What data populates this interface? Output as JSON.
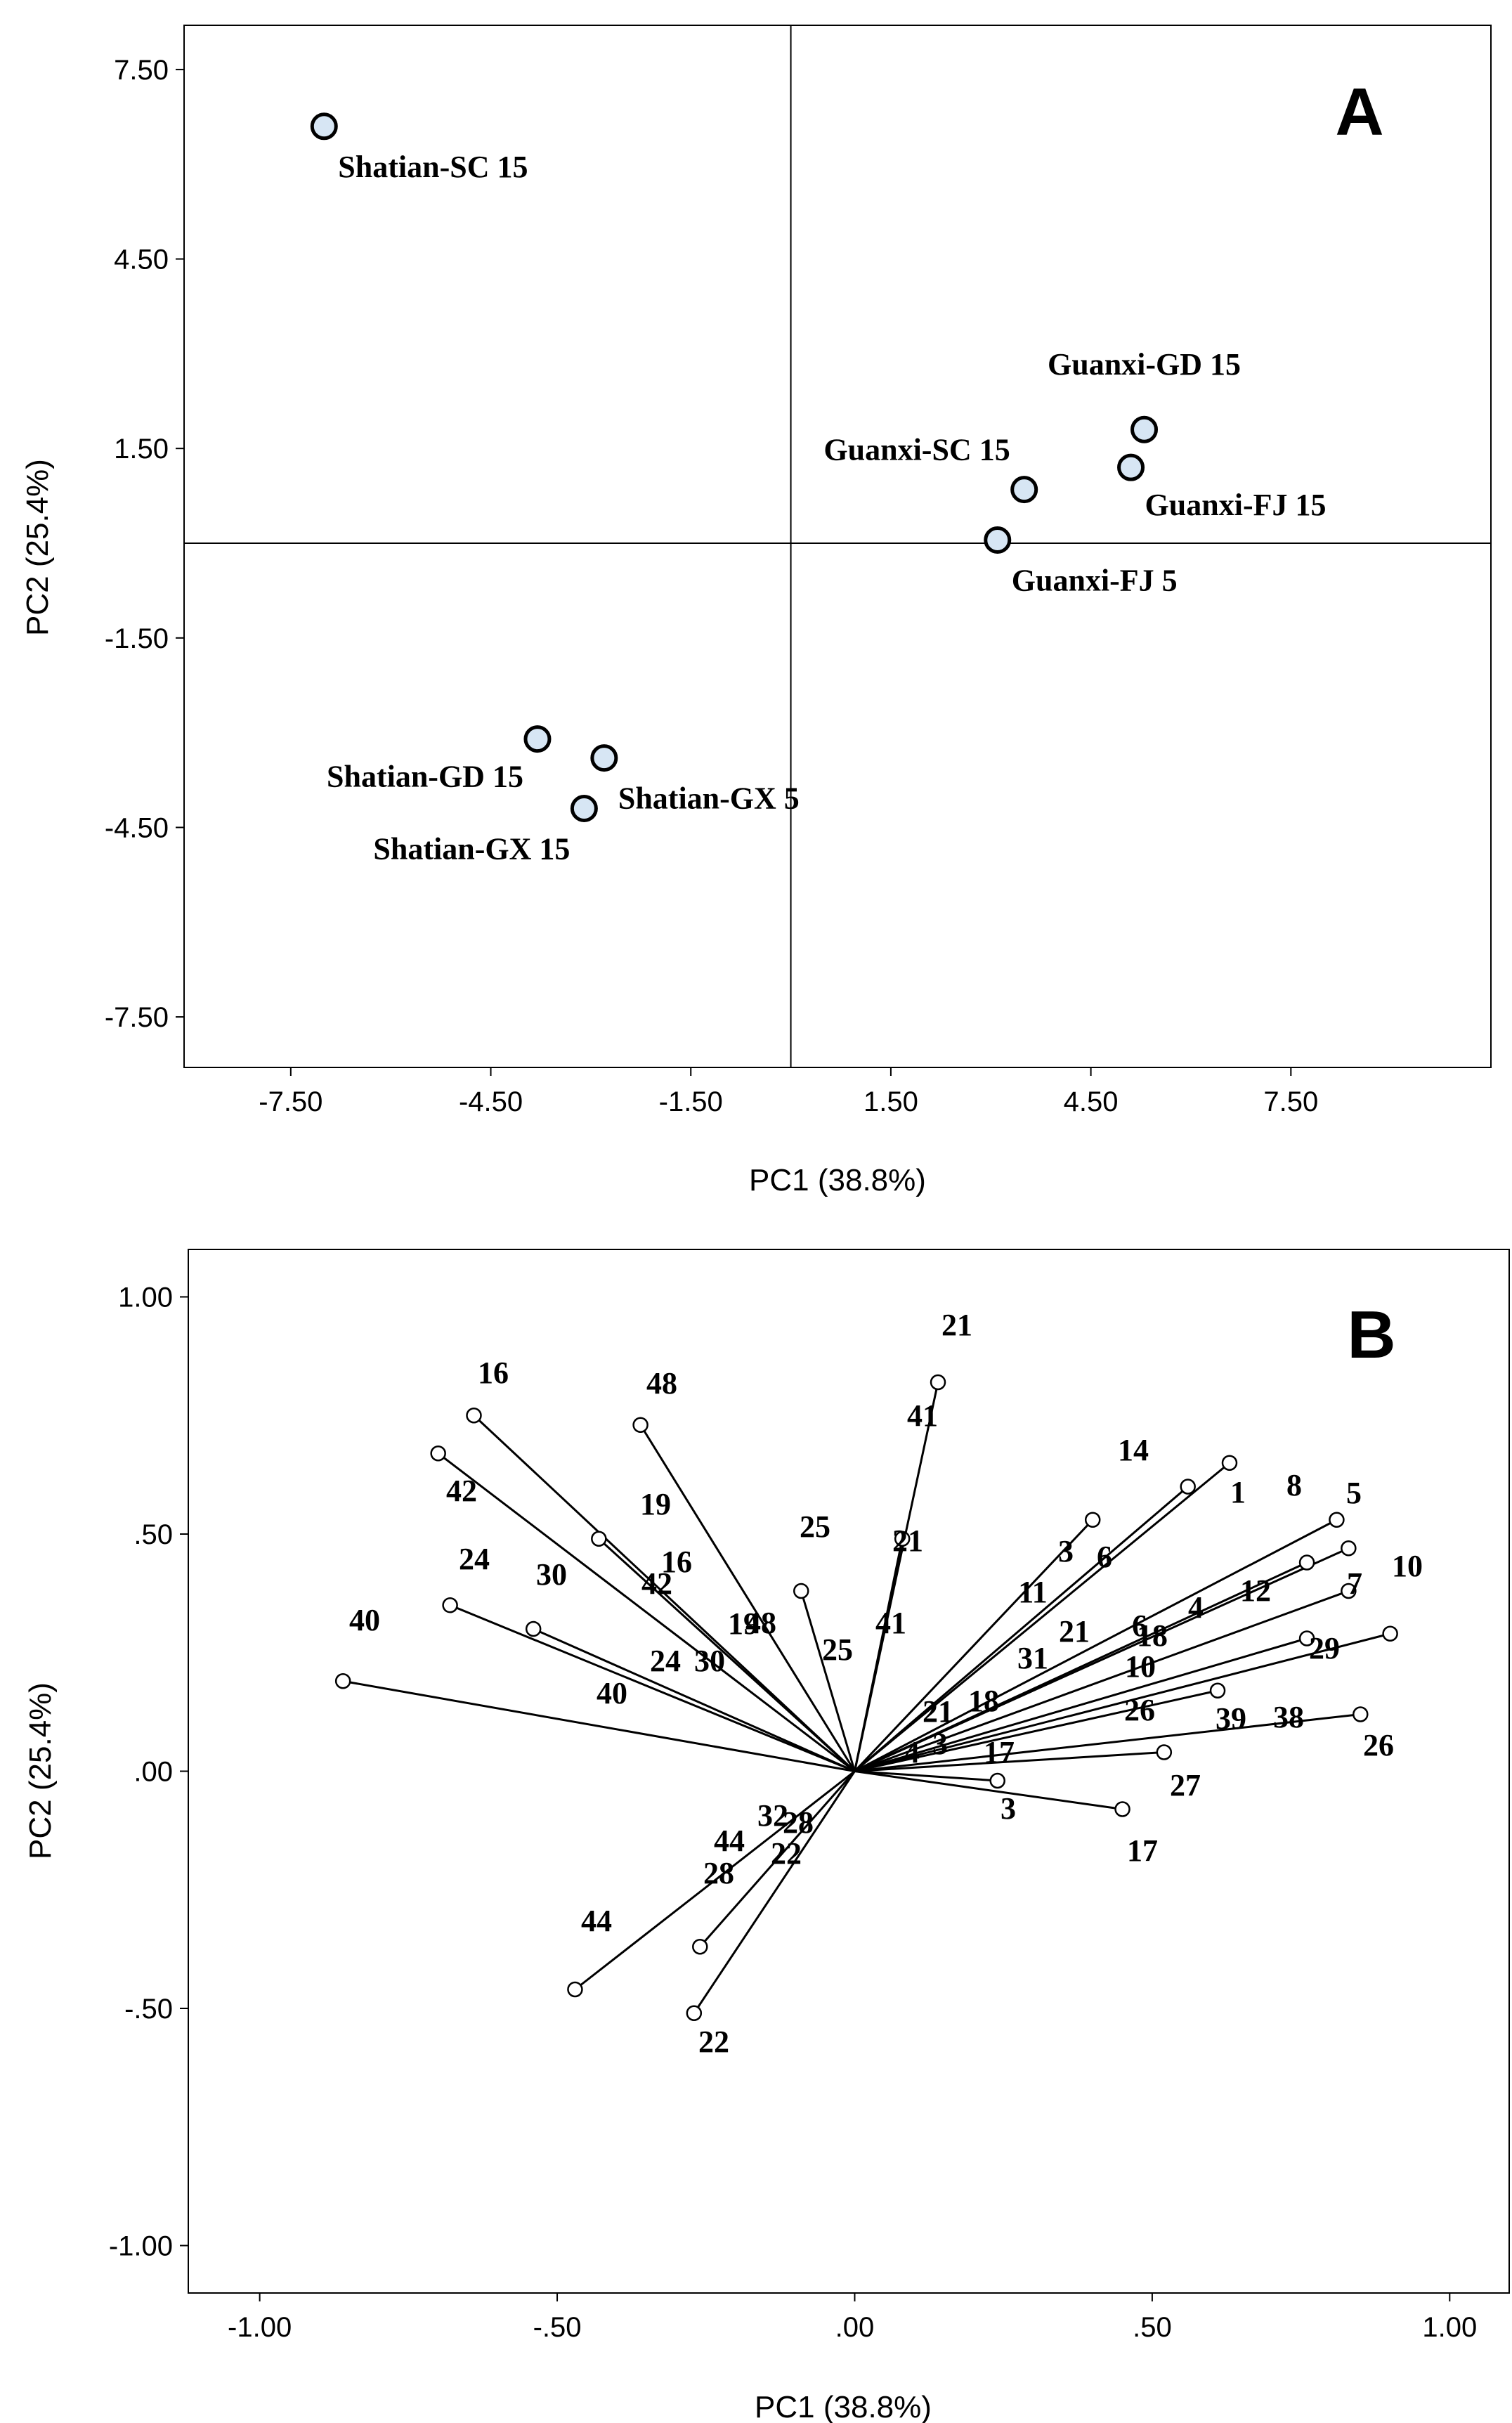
{
  "chart_data": [
    {
      "type": "scatter",
      "panel_label": "A",
      "xlabel": "PC1 (38.8%)",
      "ylabel": "PC2 (25.4%)",
      "xlim": [
        -9.1,
        10.5
      ],
      "ylim": [
        -8.3,
        8.2
      ],
      "xticks": [
        "-7.50",
        "-4.50",
        "-1.50",
        "1.50",
        "4.50",
        "7.50"
      ],
      "yticks": [
        "7.50",
        "4.50",
        "1.50",
        "-1.50",
        "-4.50",
        "-7.50"
      ],
      "reference_lines": {
        "x": 0,
        "y": 0
      },
      "points": [
        {
          "label": "Shatian-SC 15",
          "x": -7.0,
          "y": 6.6
        },
        {
          "label": "Guanxi-GD 15",
          "x": 5.3,
          "y": 1.8
        },
        {
          "label": "Guanxi-SC 15",
          "x": 3.5,
          "y": 0.85
        },
        {
          "label": "Guanxi-FJ 15",
          "x": 5.1,
          "y": 1.2
        },
        {
          "label": "Guanxi-FJ 5",
          "x": 3.1,
          "y": 0.05
        },
        {
          "label": "Shatian-GD 15",
          "x": -3.8,
          "y": -3.1
        },
        {
          "label": "Shatian-GX 5",
          "x": -2.8,
          "y": -3.4
        },
        {
          "label": "Shatian-GX 15",
          "x": -3.1,
          "y": -4.2
        }
      ]
    },
    {
      "type": "scatter",
      "panel_label": "B",
      "xlabel": "PC1 (38.8%)",
      "ylabel": "PC2 (25.4%)",
      "xlim": [
        -1.12,
        1.1
      ],
      "ylim": [
        -1.1,
        1.1
      ],
      "xticks": [
        "-1.00",
        "-.50",
        ".00",
        ".50",
        "1.00"
      ],
      "yticks": [
        "1.00",
        ".50",
        ".00",
        "-.50",
        "-1.00"
      ],
      "vectors": [
        {
          "label": "16",
          "x": -0.64,
          "y": 0.75
        },
        {
          "label": "48",
          "x": -0.36,
          "y": 0.73
        },
        {
          "label": "42",
          "x": -0.7,
          "y": 0.67
        },
        {
          "label": "19",
          "x": -0.43,
          "y": 0.49
        },
        {
          "label": "25",
          "x": -0.09,
          "y": 0.38
        },
        {
          "label": "30",
          "x": -0.54,
          "y": 0.3
        },
        {
          "label": "24",
          "x": -0.68,
          "y": 0.35
        },
        {
          "label": "40",
          "x": -0.86,
          "y": 0.19
        },
        {
          "label": "21",
          "x": 0.14,
          "y": 0.82
        },
        {
          "label": "41",
          "x": 0.08,
          "y": 0.49
        },
        {
          "label": "14",
          "x": 0.56,
          "y": 0.6
        },
        {
          "label": "1",
          "x": 0.63,
          "y": 0.65
        },
        {
          "label": "8",
          "x": 0.81,
          "y": 0.53
        },
        {
          "label": "5",
          "x": 0.83,
          "y": 0.47
        },
        {
          "label": "10",
          "x": 0.9,
          "y": 0.29
        },
        {
          "label": "12",
          "x": 0.76,
          "y": 0.44
        },
        {
          "label": "7",
          "x": 0.83,
          "y": 0.38
        },
        {
          "label": "6",
          "x": 0.4,
          "y": 0.53
        },
        {
          "label": "29",
          "x": 0.76,
          "y": 0.28
        },
        {
          "label": "38",
          "x": 0.85,
          "y": 0.12
        },
        {
          "label": "26",
          "x": 0.61,
          "y": 0.17
        },
        {
          "label": "27",
          "x": 0.52,
          "y": 0.04
        },
        {
          "label": "17",
          "x": 0.45,
          "y": -0.08
        },
        {
          "label": "3",
          "x": 0.24,
          "y": -0.02
        },
        {
          "label": "22",
          "x": -0.27,
          "y": -0.51
        },
        {
          "label": "28",
          "x": -0.26,
          "y": -0.37
        },
        {
          "label": "44",
          "x": -0.47,
          "y": -0.46
        }
      ],
      "annotations": [
        "16",
        "48",
        "42",
        "19",
        "16",
        "42",
        "48",
        "25",
        "30",
        "24",
        "19",
        "30",
        "24",
        "25",
        "40",
        "40",
        "21",
        "41",
        "21",
        "41",
        "14",
        "1",
        "8",
        "5",
        "10",
        "6",
        "3",
        "11",
        "12",
        "7",
        "4",
        "6",
        "21",
        "18",
        "29",
        "31",
        "10",
        "39",
        "26",
        "38",
        "26",
        "21",
        "18",
        "3",
        "17",
        "4",
        "27",
        "3",
        "17",
        "32",
        "28",
        "44",
        "22",
        "28",
        "44",
        "22"
      ]
    }
  ]
}
